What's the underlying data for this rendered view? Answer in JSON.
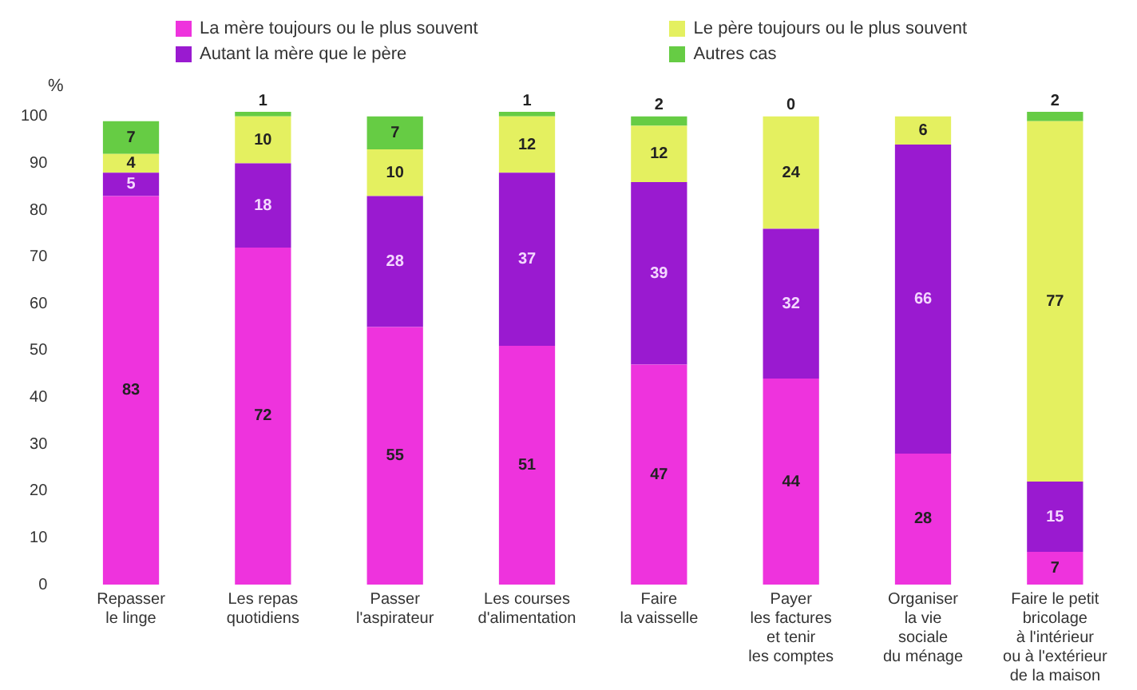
{
  "chart_data": {
    "type": "bar",
    "stacked": true,
    "ylabel": "%",
    "ylim": [
      0,
      101
    ],
    "yticks": [
      0,
      10,
      20,
      30,
      40,
      50,
      60,
      70,
      80,
      90,
      100
    ],
    "grid": false,
    "legend": "top",
    "data_labels": true,
    "categories": [
      "Repasser\nle linge",
      "Les repas\nquotidiens",
      "Passer\nl'aspirateur",
      "Les courses\nd'alimentation",
      "Faire\nla vaisselle",
      "Payer\nles factures\net tenir\nles comptes",
      "Organiser\nla vie\nsociale\ndu ménage",
      "Faire le petit\nbricolage\nà l'intérieur\nou à l'extérieur\nde la maison"
    ],
    "series": [
      {
        "name": "La mère toujours ou le plus souvent",
        "color": "#ee33dd",
        "values": [
          83,
          72,
          55,
          51,
          47,
          44,
          28,
          7
        ]
      },
      {
        "name": "Autant la mère que le père",
        "color": "#9a1ad0",
        "values": [
          5,
          18,
          28,
          37,
          39,
          32,
          66,
          15
        ]
      },
      {
        "name": "Le père toujours ou le plus souvent",
        "color": "#e4f060",
        "values": [
          4,
          10,
          10,
          12,
          12,
          24,
          6,
          77
        ]
      },
      {
        "name": "Autres cas",
        "color": "#66cc44",
        "values": [
          7,
          1,
          7,
          1,
          2,
          0,
          null,
          2
        ]
      }
    ]
  }
}
